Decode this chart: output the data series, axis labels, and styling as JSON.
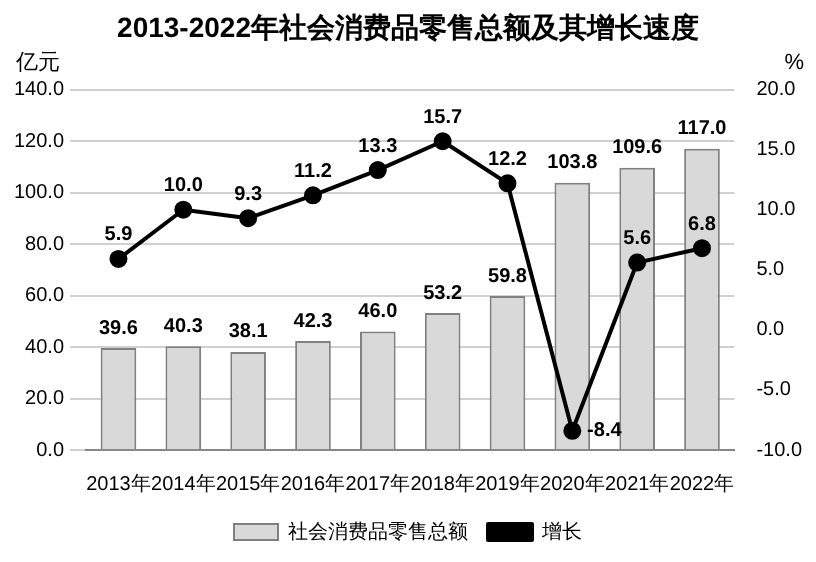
{
  "chart_data": {
    "type": "bar",
    "title": "2013-2022年社会消费品零售总额及其增长速度",
    "ylabel": "亿元",
    "y2label": "%",
    "categories": [
      "2013年",
      "2014年",
      "2015年",
      "2016年",
      "2017年",
      "2018年",
      "2019年",
      "2020年",
      "2021年",
      "2022年"
    ],
    "series": [
      {
        "name": "社会消费品零售总额",
        "color": "#d9d9d9",
        "values": [
          39.6,
          40.3,
          38.1,
          42.3,
          46.0,
          53.2,
          59.8,
          103.8,
          109.6,
          117.0
        ],
        "value_labels": [
          "39.6",
          "40.3",
          "38.1",
          "42.3",
          "46.0",
          "53.2",
          "59.8",
          "103.8",
          "109.6",
          "117.0"
        ]
      },
      {
        "name": "增长",
        "type": "line",
        "axis": "y2",
        "color": "#000000",
        "values": [
          5.9,
          10.0,
          9.3,
          11.2,
          13.3,
          15.7,
          12.2,
          -8.4,
          5.6,
          6.8
        ],
        "value_labels": [
          "5.9",
          "10.0",
          "9.3",
          "11.2",
          "13.3",
          "15.7",
          "12.2",
          "-8.4",
          "5.6",
          "6.8"
        ]
      }
    ],
    "ylim": [
      0,
      140
    ],
    "yticks": [
      {
        "value": 0,
        "label": "0.0"
      },
      {
        "value": 20,
        "label": "20.0"
      },
      {
        "value": 40,
        "label": "40.0"
      },
      {
        "value": 60,
        "label": "60.0"
      },
      {
        "value": 80,
        "label": "80.0"
      },
      {
        "value": 100,
        "label": "100.0"
      },
      {
        "value": 120,
        "label": "120.0"
      },
      {
        "value": 140,
        "label": "140.0"
      }
    ],
    "y2lim": [
      -10,
      20
    ],
    "y2ticks": [
      {
        "value": -10,
        "label": "-10.0"
      },
      {
        "value": -5,
        "label": "-5.0"
      },
      {
        "value": 0,
        "label": "0.0"
      },
      {
        "value": 5,
        "label": "5.0"
      },
      {
        "value": 10,
        "label": "10.0"
      },
      {
        "value": 15,
        "label": "15.0"
      },
      {
        "value": 20,
        "label": "20.0"
      }
    ],
    "grid": "y",
    "legend": "bottom",
    "marker": "circle",
    "line_style": "solid"
  }
}
